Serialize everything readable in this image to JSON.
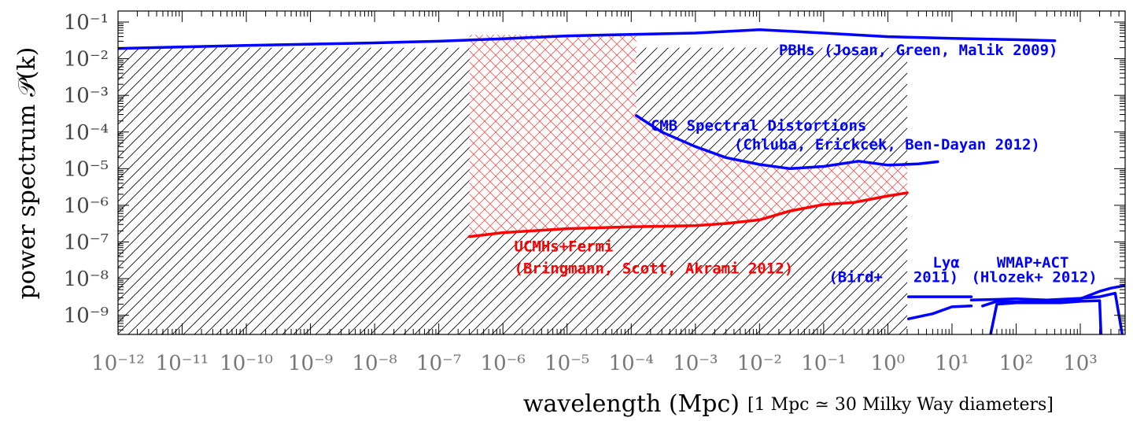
{
  "chart_data": {
    "type": "line",
    "xscale": "log",
    "yscale": "log",
    "xlim": [
      1e-12,
      5000
    ],
    "ylim": [
      3e-10,
      0.2
    ],
    "xlabel": "wavelength (Mpc)",
    "xlabel_note": "[1 Mpc ≃ 30 Milky Way diameters]",
    "ylabel": "power spectrum 𝒫(k)",
    "x_ticks": [
      {
        "value": 1e-12,
        "label": "10⁻¹²"
      },
      {
        "value": 1e-11,
        "label": "10⁻¹¹"
      },
      {
        "value": 1e-10,
        "label": "10⁻¹⁰"
      },
      {
        "value": 1e-09,
        "label": "10⁻⁹"
      },
      {
        "value": 1e-08,
        "label": "10⁻⁸"
      },
      {
        "value": 1e-07,
        "label": "10⁻⁷"
      },
      {
        "value": 1e-06,
        "label": "10⁻⁶"
      },
      {
        "value": 1e-05,
        "label": "10⁻⁵"
      },
      {
        "value": 0.0001,
        "label": "10⁻⁴"
      },
      {
        "value": 0.001,
        "label": "10⁻³"
      },
      {
        "value": 0.01,
        "label": "10⁻²"
      },
      {
        "value": 0.1,
        "label": "10⁻¹"
      },
      {
        "value": 1,
        "label": "10⁰"
      },
      {
        "value": 10,
        "label": "10¹"
      },
      {
        "value": 100,
        "label": "10²"
      },
      {
        "value": 1000,
        "label": "10³"
      }
    ],
    "y_ticks": [
      {
        "value": 0.1,
        "label": "10⁻¹"
      },
      {
        "value": 0.01,
        "label": "10⁻²"
      },
      {
        "value": 0.001,
        "label": "10⁻³"
      },
      {
        "value": 0.0001,
        "label": "10⁻⁴"
      },
      {
        "value": 1e-05,
        "label": "10⁻⁵"
      },
      {
        "value": 1e-06,
        "label": "10⁻⁶"
      },
      {
        "value": 1e-07,
        "label": "10⁻⁷"
      },
      {
        "value": 1e-08,
        "label": "10⁻⁸"
      },
      {
        "value": 1e-09,
        "label": "10⁻⁹"
      }
    ],
    "regions": [
      {
        "name": "allowed-region-hatched",
        "color": "#000000",
        "points": [
          [
            1e-12,
            0.02
          ],
          [
            2,
            0.02
          ],
          [
            2,
            3e-10
          ],
          [
            1e-12,
            3e-10
          ]
        ]
      },
      {
        "name": "excluded-region-crosshatched",
        "color": "#ff0000",
        "points": [
          [
            3e-07,
            0.045
          ],
          [
            0.00012,
            0.045
          ],
          [
            0.00012,
            0.00028
          ],
          [
            0.0003,
            0.0001
          ],
          [
            0.001,
            4e-05
          ],
          [
            0.003,
            2e-05
          ],
          [
            0.01,
            1.3e-05
          ],
          [
            0.03,
            1e-05
          ],
          [
            0.1,
            1.15e-05
          ],
          [
            0.35,
            1.6e-05
          ],
          [
            1,
            1.25e-05
          ],
          [
            2,
            1.25e-05
          ],
          [
            2,
            2.2e-06
          ],
          [
            1,
            1.8e-06
          ],
          [
            0.3,
            1.2e-06
          ],
          [
            0.1,
            1.05e-06
          ],
          [
            0.03,
            7e-07
          ],
          [
            0.01,
            4e-07
          ],
          [
            0.003,
            3.2e-07
          ],
          [
            0.001,
            2.8e-07
          ],
          [
            0.0001,
            2.6e-07
          ],
          [
            1e-05,
            2.3e-07
          ],
          [
            1e-06,
            1.8e-07
          ],
          [
            3e-07,
            1.4e-07
          ]
        ]
      }
    ],
    "series": [
      {
        "name": "PBHs",
        "color": "#0000ff",
        "points": [
          [
            1e-12,
            0.019
          ],
          [
            1e-11,
            0.021
          ],
          [
            1e-10,
            0.023
          ],
          [
            1e-09,
            0.025
          ],
          [
            1e-08,
            0.027
          ],
          [
            1e-07,
            0.03
          ],
          [
            1e-06,
            0.035
          ],
          [
            1e-05,
            0.042
          ],
          [
            0.0001,
            0.046
          ],
          [
            0.001,
            0.05
          ],
          [
            0.01,
            0.062
          ],
          [
            0.1,
            0.05
          ],
          [
            1,
            0.04
          ],
          [
            10,
            0.036
          ],
          [
            100,
            0.033
          ],
          [
            400,
            0.031
          ]
        ]
      },
      {
        "name": "CMB Spectral Distortions",
        "color": "#0000ff",
        "points": [
          [
            0.00012,
            0.00028
          ],
          [
            0.0003,
            0.0001
          ],
          [
            0.001,
            4e-05
          ],
          [
            0.003,
            2e-05
          ],
          [
            0.01,
            1.3e-05
          ],
          [
            0.03,
            1e-05
          ],
          [
            0.1,
            1.15e-05
          ],
          [
            0.35,
            1.6e-05
          ],
          [
            1,
            1.25e-05
          ],
          [
            3,
            1.35e-05
          ],
          [
            6,
            1.55e-05
          ]
        ]
      },
      {
        "name": "UCMHs+Fermi",
        "color": "#ff0000",
        "points": [
          [
            3e-07,
            1.4e-07
          ],
          [
            1e-06,
            1.8e-07
          ],
          [
            1e-05,
            2.3e-07
          ],
          [
            0.0001,
            2.6e-07
          ],
          [
            0.001,
            2.8e-07
          ],
          [
            0.003,
            3.2e-07
          ],
          [
            0.01,
            4e-07
          ],
          [
            0.03,
            7e-07
          ],
          [
            0.1,
            1.05e-06
          ],
          [
            0.3,
            1.2e-06
          ],
          [
            1,
            1.8e-06
          ],
          [
            2,
            2.2e-06
          ]
        ]
      },
      {
        "name": "Lyα",
        "color": "#0000ff",
        "points": [
          [
            2.1,
            3.2e-09
          ],
          [
            20,
            3.2e-09
          ]
        ]
      },
      {
        "name": "Lyα lower",
        "color": "#0000ff",
        "points": [
          [
            2.1,
            8e-10
          ],
          [
            5,
            1.1e-09
          ],
          [
            10,
            1.7e-09
          ],
          [
            20,
            1.8e-09
          ]
        ]
      },
      {
        "name": "WMAP+ACT",
        "color": "#0000ff",
        "points": [
          [
            30,
            1.8e-09
          ],
          [
            50,
            2.4e-09
          ],
          [
            100,
            2.3e-09
          ],
          [
            200,
            2.4e-09
          ],
          [
            500,
            2.6e-09
          ],
          [
            1000,
            2.8e-09
          ],
          [
            2000,
            4.5e-09
          ],
          [
            3000,
            5.5e-09
          ],
          [
            5000,
            6.5e-09
          ]
        ]
      },
      {
        "name": "WMAP+ACT lower",
        "color": "#0000ff",
        "points": [
          [
            40,
            3e-10
          ],
          [
            50,
            2e-09
          ],
          [
            100,
            2.2e-09
          ],
          [
            500,
            2.2e-09
          ],
          [
            1000,
            2.4e-09
          ],
          [
            2000,
            2.5e-09
          ],
          [
            2100,
            3e-10
          ]
        ]
      },
      {
        "name": "WMAP+ACT upper",
        "color": "#0000ff",
        "points": [
          [
            20,
            2.6e-09
          ],
          [
            100,
            2.8e-09
          ],
          [
            300,
            2.6e-09
          ],
          [
            1000,
            2.9e-09
          ],
          [
            2000,
            3.2e-09
          ],
          [
            3500,
            4e-09
          ],
          [
            4500,
            3e-10
          ]
        ]
      }
    ],
    "annotations": [
      {
        "text": "PBHs (Josan, Green, Malik 2009)",
        "x": 0.02,
        "y": 0.0125,
        "color": "#0000ff"
      },
      {
        "text": "CMB Spectral Distortions",
        "x": 0.0002,
        "y": 0.00011,
        "color": "#0000ff"
      },
      {
        "text": "(Chluba, Erickcek, Ben-Dayan 2012)",
        "x": 0.004,
        "y": 3.3e-05,
        "color": "#0000ff"
      },
      {
        "text": "UCMHs+Fermi",
        "x": 1.5e-06,
        "y": 5.5e-08,
        "color": "#ff0000"
      },
      {
        "text": "(Bringmann, Scott, Akrami 2012)",
        "x": 1.5e-06,
        "y": 1.4e-08,
        "color": "#ff0000"
      },
      {
        "text": "Lyα",
        "x": 5,
        "y": 2e-08,
        "color": "#0000ff"
      },
      {
        "text": "(Bird+",
        "x": 0.12,
        "y": 8e-09,
        "color": "#0000ff"
      },
      {
        "text": "2011)",
        "x": 2.5,
        "y": 8e-09,
        "color": "#0000ff"
      },
      {
        "text": "WMAP+ACT",
        "x": 50,
        "y": 2e-08,
        "color": "#0000ff"
      },
      {
        "text": "(Hlozek+ 2012)",
        "x": 20,
        "y": 8e-09,
        "color": "#0000ff"
      }
    ]
  }
}
